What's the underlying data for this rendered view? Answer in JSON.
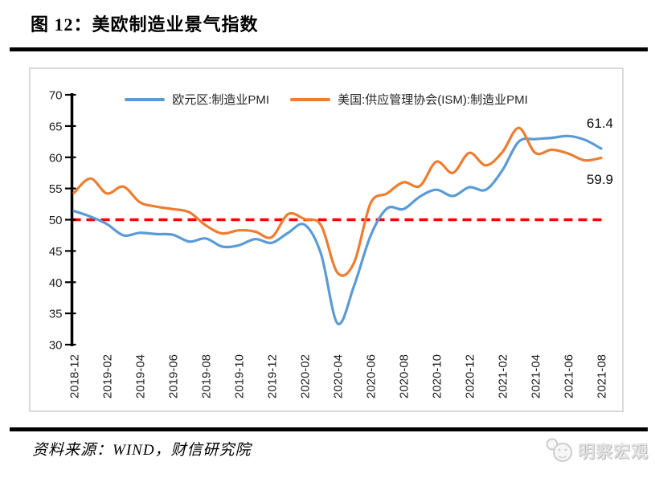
{
  "figure": {
    "title": "图 12：美欧制造业景气指数",
    "source": "资料来源：WIND，财信研究院",
    "watermark": "明察宏观"
  },
  "chart_data": {
    "type": "line",
    "title": "",
    "xlabel": "",
    "ylabel": "",
    "ylim": [
      30,
      70
    ],
    "y_ticks": [
      30,
      35,
      40,
      45,
      50,
      55,
      60,
      65,
      70
    ],
    "grid": false,
    "legend_position": "top-center",
    "axis_color": "#000000",
    "tick_label_color": "#1f1f1f",
    "reference_line": {
      "y": 50,
      "color": "#FF0000",
      "style": "dashed"
    },
    "x": [
      "2018-12",
      "2019-01",
      "2019-02",
      "2019-03",
      "2019-04",
      "2019-05",
      "2019-06",
      "2019-07",
      "2019-08",
      "2019-09",
      "2019-10",
      "2019-11",
      "2019-12",
      "2020-01",
      "2020-02",
      "2020-03",
      "2020-04",
      "2020-05",
      "2020-06",
      "2020-07",
      "2020-08",
      "2020-09",
      "2020-10",
      "2020-11",
      "2020-12",
      "2021-01",
      "2021-02",
      "2021-03",
      "2021-04",
      "2021-05",
      "2021-06",
      "2021-07",
      "2021-08"
    ],
    "x_tick_labels": [
      "2018-12",
      "2019-02",
      "2019-04",
      "2019-06",
      "2019-08",
      "2019-10",
      "2019-12",
      "2020-02",
      "2020-04",
      "2020-06",
      "2020-08",
      "2020-10",
      "2020-12",
      "2021-02",
      "2021-04",
      "2021-06",
      "2021-08"
    ],
    "series": [
      {
        "name": "欧元区:制造业PMI",
        "color": "#5B9BD5",
        "values": [
          51.4,
          50.5,
          49.3,
          47.5,
          47.9,
          47.7,
          47.6,
          46.5,
          47.0,
          45.7,
          45.9,
          46.9,
          46.3,
          47.9,
          49.2,
          44.5,
          33.4,
          39.4,
          47.4,
          51.8,
          51.7,
          53.7,
          54.8,
          53.8,
          55.2,
          54.8,
          57.9,
          62.5,
          62.9,
          63.1,
          63.4,
          62.8,
          61.4
        ]
      },
      {
        "name": "美国:供应管理协会(ISM):制造业PMI",
        "color": "#ED7D31",
        "values": [
          54.3,
          56.6,
          54.2,
          55.3,
          52.8,
          52.1,
          51.7,
          51.2,
          49.1,
          47.8,
          48.3,
          48.1,
          47.2,
          50.9,
          50.1,
          49.1,
          41.5,
          43.1,
          52.6,
          54.2,
          56.0,
          55.4,
          59.3,
          57.5,
          60.7,
          58.7,
          60.8,
          64.7,
          60.7,
          61.2,
          60.6,
          59.5,
          59.9
        ]
      }
    ],
    "end_labels": [
      {
        "series": "欧元区:制造业PMI",
        "text": "61.4"
      },
      {
        "series": "美国:供应管理协会(ISM):制造业PMI",
        "text": "59.9"
      }
    ]
  }
}
